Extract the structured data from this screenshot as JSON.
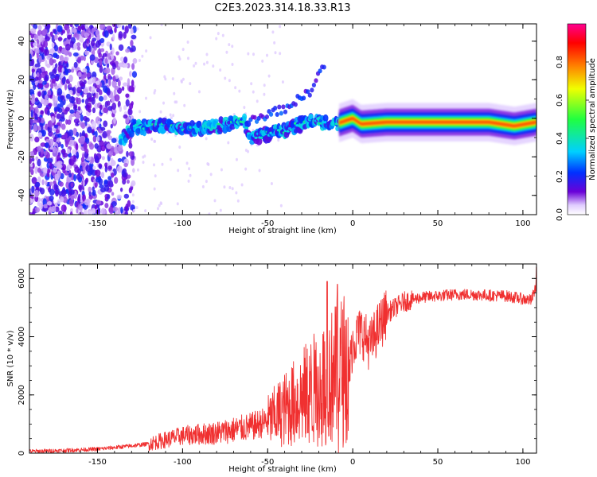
{
  "figure_title": "C2E3.2023.314.18.33.R13",
  "colors": {
    "snr_line": "#f03030",
    "axis": "#000000",
    "colormap": [
      "#ffffff",
      "#6a00d8",
      "#0030ff",
      "#00d0ff",
      "#20ff40",
      "#f0ff00",
      "#ff8000",
      "#ff0000",
      "#ff0090"
    ]
  },
  "chart_data": [
    {
      "type": "heatmap",
      "title": "",
      "xlabel": "Height of straight line (km)",
      "ylabel": "Frequency (Hz)",
      "xlim": [
        -190,
        108
      ],
      "ylim": [
        -50,
        49
      ],
      "xticks": [
        -150,
        -100,
        -50,
        0,
        50,
        100
      ],
      "yticks": [
        -40,
        -20,
        0,
        20,
        40
      ],
      "grid": false,
      "colorbar": {
        "label": "Normalized spectral amplitude",
        "range": [
          0,
          1
        ],
        "ticks": [
          0.0,
          0.2,
          0.4,
          0.6,
          0.8
        ]
      },
      "ridge": [
        {
          "x": -135,
          "y": -10
        },
        {
          "x": -130,
          "y": -5
        },
        {
          "x": -110,
          "y": -4
        },
        {
          "x": -90,
          "y": -6
        },
        {
          "x": -75,
          "y": -3
        },
        {
          "x": -65,
          "y": -1
        },
        {
          "x": -60,
          "y": -10
        },
        {
          "x": -40,
          "y": -6
        },
        {
          "x": -25,
          "y": -1
        },
        {
          "x": -10,
          "y": -3
        },
        {
          "x": 0,
          "y": 0
        },
        {
          "x": 5,
          "y": -3
        },
        {
          "x": 20,
          "y": -2
        },
        {
          "x": 80,
          "y": -2
        },
        {
          "x": 95,
          "y": -4
        },
        {
          "x": 108,
          "y": -2
        }
      ],
      "upper_branch": [
        {
          "x": -60,
          "y": -1
        },
        {
          "x": -40,
          "y": 5
        },
        {
          "x": -25,
          "y": 14
        },
        {
          "x": -17,
          "y": 28
        }
      ]
    },
    {
      "type": "line",
      "title": "",
      "xlabel": "Height of straight line (km)",
      "ylabel": "SNR (10 * v/v)",
      "xlim": [
        -190,
        108
      ],
      "ylim": [
        0,
        6500
      ],
      "xticks": [
        -150,
        -100,
        -50,
        0,
        50,
        100
      ],
      "yticks": [
        0,
        2000,
        4000,
        6000
      ],
      "grid": false,
      "series": [
        {
          "name": "SNR",
          "x": [
            -190,
            -170,
            -150,
            -130,
            -120,
            -100,
            -80,
            -60,
            -50,
            -40,
            -30,
            -20,
            -15,
            -10,
            -5,
            -2,
            0,
            5,
            10,
            15,
            20,
            30,
            40,
            50,
            60,
            70,
            80,
            90,
            100,
            105,
            108
          ],
          "baseline": [
            60,
            90,
            140,
            250,
            320,
            600,
            700,
            900,
            1100,
            1500,
            1900,
            2300,
            2500,
            2700,
            2900,
            2800,
            3800,
            4200,
            3700,
            4300,
            4800,
            5200,
            5350,
            5400,
            5450,
            5450,
            5420,
            5400,
            5300,
            5250,
            5800
          ],
          "peaks": [
            {
              "x": -15,
              "y": 5900
            },
            {
              "x": -9,
              "y": 5800
            },
            {
              "x": 3,
              "y": 4700
            },
            {
              "x": 108,
              "y": 6400
            }
          ]
        }
      ]
    }
  ]
}
